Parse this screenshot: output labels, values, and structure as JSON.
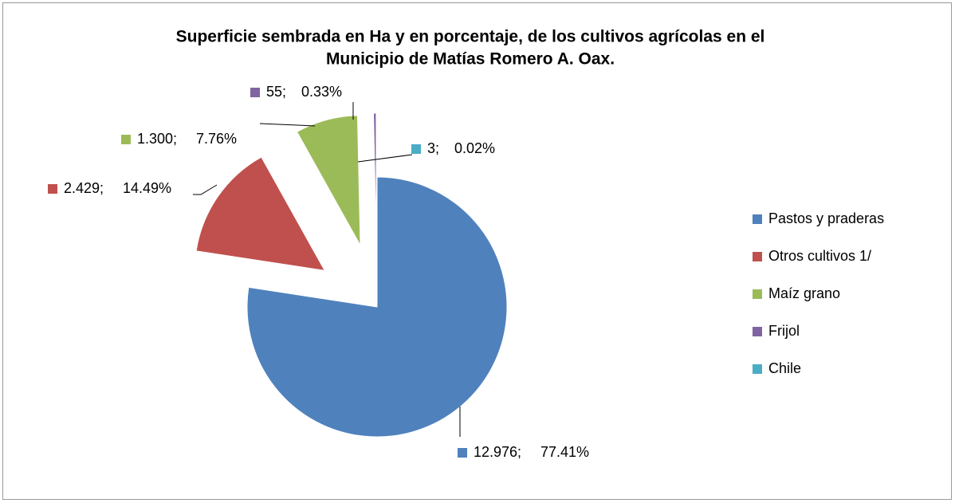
{
  "chart_data": {
    "type": "pie",
    "title": [
      "Superficie sembrada en Ha y en porcentaje, de los cultivos agrícolas en el",
      "Municipio de Matías Romero A. Oax."
    ],
    "categories": [
      "Pastos y praderas",
      "Otros cultivos 1/",
      "Maíz grano",
      "Frijol",
      "Chile"
    ],
    "values": [
      12976,
      2429,
      1300,
      55,
      3
    ],
    "value_labels": [
      "12.976;",
      "2.429;",
      "1.300;",
      "55;",
      "3;"
    ],
    "percentages": [
      77.41,
      14.49,
      7.76,
      0.33,
      0.02
    ],
    "percentage_labels": [
      "77.41%",
      "14.49%",
      "7.76%",
      "0.33%",
      "0.02%"
    ],
    "colors": [
      "#4f81bd",
      "#c0504d",
      "#9bbb59",
      "#8064a2",
      "#4bacc6"
    ],
    "legend": "right"
  }
}
